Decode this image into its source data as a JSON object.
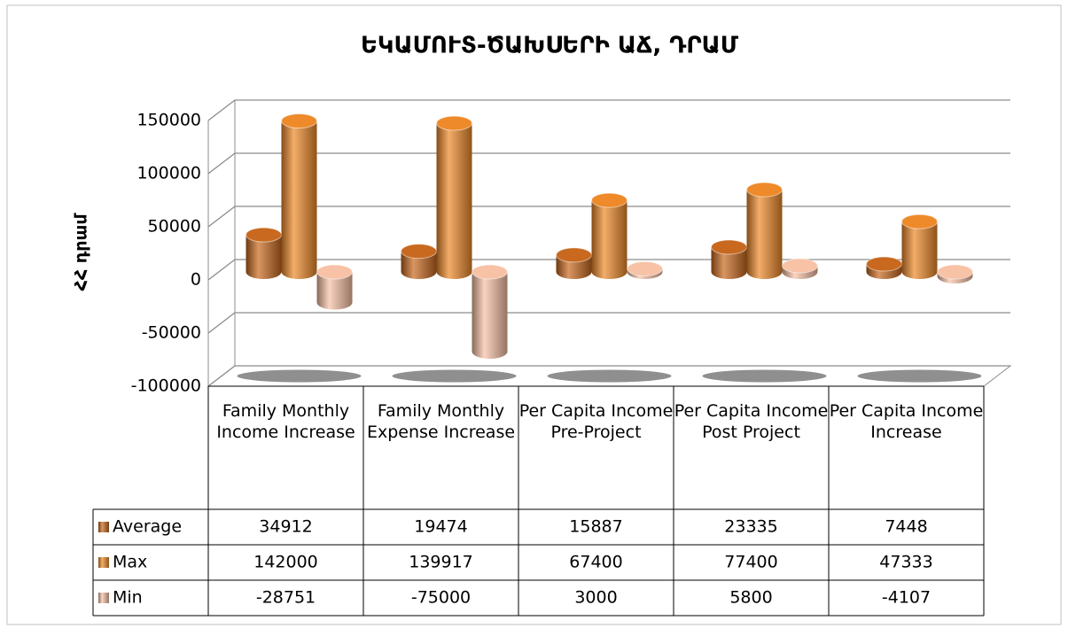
{
  "chart_data": {
    "type": "cylinder",
    "title": "ԵԿԱՄՈՒՏ-ԾԱԽՍԵՐԻ ԱՃ, ԴՐԱՄ",
    "y_label": "ՀՀ դրամ",
    "categories": [
      "Family Monthly Income Increase",
      "Family Monthly Expense Increase",
      "Per Capita Income Pre-Project",
      "Per Capita Income Post Project",
      "Per Capita Income Increase"
    ],
    "series": [
      {
        "name": "Average",
        "color": "#c8691f",
        "values": [
          34912,
          19474,
          15887,
          23335,
          7448
        ]
      },
      {
        "name": "Max",
        "color": "#ee8a2a",
        "values": [
          142000,
          139917,
          67400,
          77400,
          47333
        ]
      },
      {
        "name": "Min",
        "color": "#f8c2a6",
        "values": [
          -28751,
          -75000,
          3000,
          5800,
          -4107
        ]
      }
    ],
    "ylim": [
      -100000,
      150000
    ],
    "yticks": [
      -100000,
      -50000,
      0,
      50000,
      100000,
      150000
    ],
    "grid": true
  }
}
